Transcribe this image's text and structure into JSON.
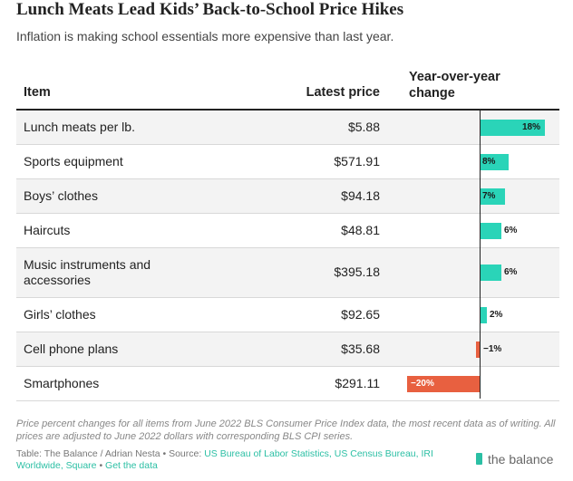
{
  "title": "Lunch Meats Lead Kids’ Back-to-School Price Hikes",
  "subtitle": "Inflation is making school essentials more expensive than last year.",
  "headers": {
    "item": "Item",
    "price": "Latest price",
    "yoy_line1": "Year-over-year",
    "yoy_line2": "change"
  },
  "chart_data": {
    "type": "table",
    "title": "Lunch Meats Lead Kids’ Back-to-School Price Hikes",
    "columns": [
      "Item",
      "Latest price",
      "Year-over-year change"
    ],
    "rows": [
      {
        "item": "Lunch meats per lb.",
        "price": "$5.88",
        "change": 18,
        "label": "18%"
      },
      {
        "item": "Sports equipment",
        "price": "$571.91",
        "change": 8,
        "label": "8%"
      },
      {
        "item": "Boys’ clothes",
        "price": "$94.18",
        "change": 7,
        "label": "7%"
      },
      {
        "item": "Haircuts",
        "price": "$48.81",
        "change": 6,
        "label": "6%"
      },
      {
        "item": "Music instruments and accessories",
        "price": "$395.18",
        "change": 6,
        "label": "6%"
      },
      {
        "item": "Girls’ clothes",
        "price": "$92.65",
        "change": 2,
        "label": "2%"
      },
      {
        "item": "Cell phone plans",
        "price": "$35.68",
        "change": -1,
        "label": "−1%"
      },
      {
        "item": "Smartphones",
        "price": "$291.11",
        "change": -20,
        "label": "−20%"
      }
    ],
    "positive_color": "#2ad4b8",
    "negative_color": "#e86040"
  },
  "footnote": "Price percent changes for all items from June 2022 BLS Consumer Price Index data, the most recent data as of writing. All prices are adjusted to June 2022 dollars with corresponding BLS CPI series.",
  "source": {
    "prefix": "Table: The Balance / Adrian Nesta • Source: ",
    "links": "US Bureau of Labor Statistics, US Census Bureau, IRI Worldwide, Square",
    "separator": " • ",
    "get_data": "Get the data"
  },
  "brand": "the balance",
  "colors": {
    "accent": "#2bbfa4"
  }
}
